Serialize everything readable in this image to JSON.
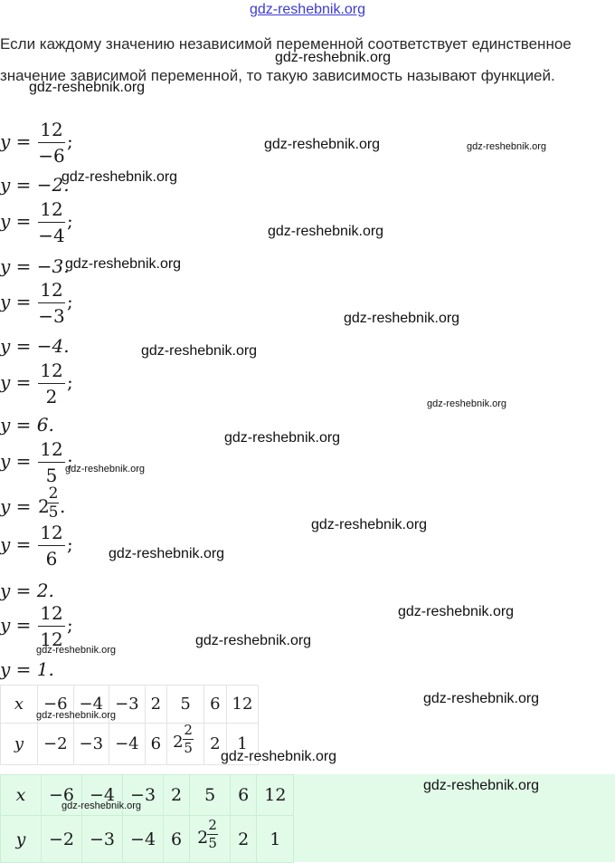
{
  "header_watermark": "gdz-reshebnik.org",
  "definition": "Если каждому значению независимой переменной соответствует единственное значение зависимой переменной, то такую зависимость называют функцией.",
  "lhs": "y =",
  "steps": [
    {
      "num": "12",
      "den": "−6",
      "punct": ";",
      "result": "y = −2."
    },
    {
      "num": "12",
      "den": "−4",
      "punct": ";",
      "result": "y = −3."
    },
    {
      "num": "12",
      "den": "−3",
      "punct": ";",
      "result": "y = −4."
    },
    {
      "num": "12",
      "den": "2",
      "punct": ";",
      "result": "y = 6."
    },
    {
      "num": "12",
      "den": "5",
      "punct": ";",
      "result_whole": "2",
      "result_num": "2",
      "result_den": "5"
    },
    {
      "num": "12",
      "den": "6",
      "punct": ";",
      "result": "y = 2."
    },
    {
      "num": "12",
      "den": "12",
      "punct": ";",
      "result": "y = 1."
    }
  ],
  "table": {
    "x_label": "x",
    "y_label": "y",
    "x_values": [
      "−6",
      "−4",
      "−3",
      "2",
      "5",
      "6",
      "12"
    ],
    "y_values": [
      "−2",
      "−3",
      "−4",
      "6",
      "2 2/5",
      "2",
      "1"
    ],
    "mixed": {
      "whole": "2",
      "num": "2",
      "den": "5"
    }
  },
  "watermarks": [
    "gdz-reshebnik.org",
    "gdz-reshebnik.org",
    "gdz-reshebnik.org",
    "gdz-reshebnik.org",
    "gdz-reshebnik.org",
    "gdz-reshebnik.org",
    "gdz-reshebnik.org",
    "gdz-reshebnik.org",
    "gdz-reshebnik.org",
    "gdz-reshebnik.org",
    "gdz-reshebnik.org",
    "gdz-reshebnik.org",
    "gdz-reshebnik.org",
    "gdz-reshebnik.org",
    "gdz-reshebnik.org",
    "gdz-reshebnik.org",
    "gdz-reshebnik.org",
    "gdz-reshebnik.org",
    "gdz-reshebnik.org",
    "gdz-reshebnik.org",
    "gdz-reshebnik.org",
    "gdz-reshebnik.org",
    "gdz-reshebnik.org"
  ],
  "colors": {
    "link": "#3b3bd6",
    "table_highlight": "#e2fbe9"
  }
}
